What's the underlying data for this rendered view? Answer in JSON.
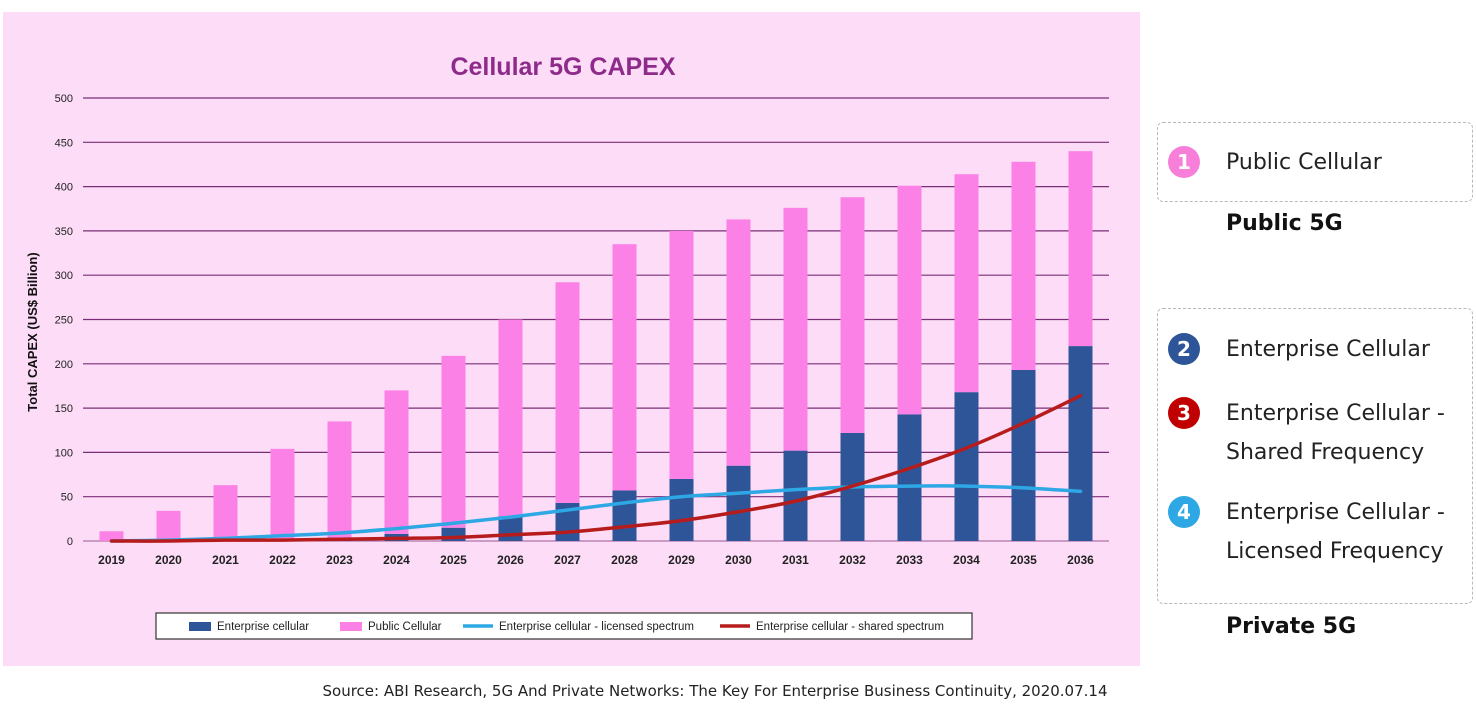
{
  "chart_data": {
    "type": "bar",
    "title": "Cellular 5G CAPEX",
    "ylabel": "Total CAPEX (US$ Billion)",
    "xlabel": "",
    "ylim": [
      0,
      500
    ],
    "yticks": [
      0,
      50,
      100,
      150,
      200,
      250,
      300,
      350,
      400,
      450,
      500
    ],
    "grid": true,
    "stacked": true,
    "legend_position": "bottom",
    "categories": [
      "2019",
      "2020",
      "2021",
      "2022",
      "2023",
      "2024",
      "2025",
      "2026",
      "2027",
      "2028",
      "2029",
      "2030",
      "2031",
      "2032",
      "2033",
      "2034",
      "2035",
      "2036"
    ],
    "series": [
      {
        "name": "Enterprise cellular",
        "kind": "bar",
        "color": "#2e5597",
        "values": [
          0,
          0,
          1,
          2,
          4,
          8,
          15,
          28,
          43,
          57,
          70,
          85,
          102,
          122,
          143,
          168,
          193,
          220
        ]
      },
      {
        "name": "Public Cellular",
        "kind": "bar",
        "color": "#fc81e6",
        "values": [
          11,
          34,
          62,
          102,
          131,
          162,
          194,
          222,
          249,
          278,
          280,
          278,
          274,
          266,
          258,
          246,
          235,
          220
        ]
      },
      {
        "name": "Enterprise cellular - licensed spectrum",
        "kind": "line",
        "color": "#2ea8e4",
        "values": [
          0,
          1,
          3,
          6,
          9,
          14,
          20,
          27,
          35,
          43,
          50,
          54,
          58,
          61,
          62,
          62,
          60,
          56
        ]
      },
      {
        "name": "Enterprise cellular - shared spectrum",
        "kind": "line",
        "color": "#b71c1c",
        "values": [
          0,
          0,
          1,
          1,
          2,
          3,
          4,
          7,
          10,
          16,
          23,
          33,
          45,
          62,
          82,
          105,
          133,
          164
        ]
      }
    ]
  },
  "legend_panel": {
    "groups": [
      {
        "title": "Public 5G",
        "items": [
          {
            "num": "1",
            "color": "#f77fd9",
            "label": "Public Cellular"
          }
        ]
      },
      {
        "title": "Private 5G",
        "items": [
          {
            "num": "2",
            "color": "#2e5597",
            "label": "Enterprise Cellular"
          },
          {
            "num": "3",
            "color": "#c00000",
            "label": "Enterprise Cellular -",
            "label2": "Shared Frequency"
          },
          {
            "num": "4",
            "color": "#2ea8e4",
            "label": "Enterprise Cellular -",
            "label2": "Licensed Frequency"
          }
        ]
      }
    ]
  },
  "source": "Source: ABI Research, 5G And Private Networks: The Key For Enterprise Business Continuity, 2020.07.14"
}
